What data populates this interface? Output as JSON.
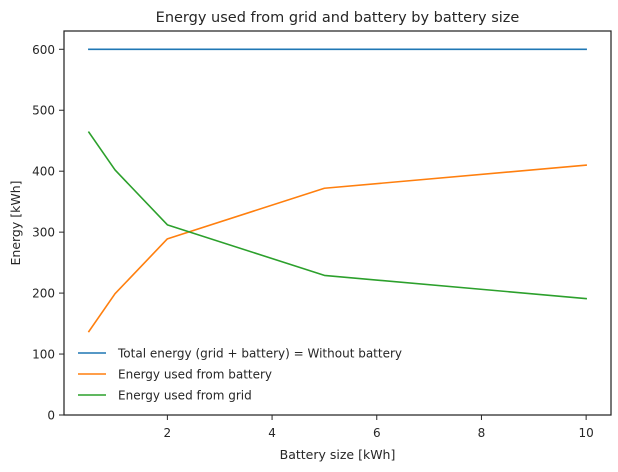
{
  "chart_data": {
    "type": "line",
    "title": "Energy used from grid and battery by battery size",
    "xlabel": "Battery size [kWh]",
    "ylabel": "Energy [kWh]",
    "xlim": [
      0.025,
      10.475
    ],
    "ylim": [
      0,
      630
    ],
    "xticks": [
      2,
      4,
      6,
      8,
      10
    ],
    "xtick_labels": [
      "2",
      "4",
      "6",
      "8",
      "10"
    ],
    "yticks": [
      0,
      100,
      200,
      300,
      400,
      500,
      600
    ],
    "ytick_labels": [
      "0",
      "100",
      "200",
      "300",
      "400",
      "500",
      "600"
    ],
    "grid": false,
    "legend_position": "lower-left",
    "x": [
      0.5,
      1,
      2,
      5,
      10
    ],
    "series": [
      {
        "name": "Total energy (grid + battery) = Without battery",
        "color": "#1f77b4",
        "values": [
          600,
          600,
          600,
          600,
          600
        ]
      },
      {
        "name": "Energy used from battery",
        "color": "#ff7f0e",
        "values": [
          137,
          199,
          289,
          372,
          410
        ]
      },
      {
        "name": "Energy used from grid",
        "color": "#2ca02c",
        "values": [
          464,
          402,
          312,
          229,
          191
        ]
      }
    ]
  }
}
